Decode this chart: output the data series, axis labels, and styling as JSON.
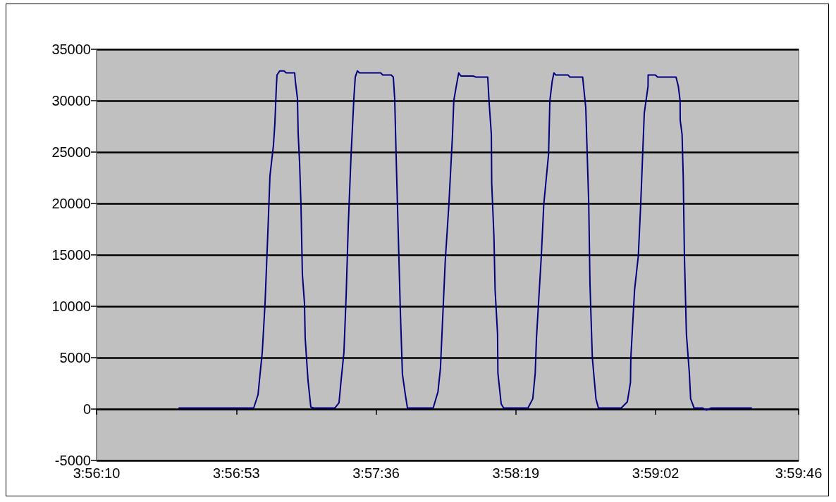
{
  "chart_data": {
    "type": "line",
    "xlim": [
      3.936111,
      3.996111
    ],
    "xticks": [
      {
        "value": 3.936111,
        "label": "3:56:10"
      },
      {
        "value": 3.948056,
        "label": "3:56:53"
      },
      {
        "value": 3.96,
        "label": "3:57:36"
      },
      {
        "value": 3.971944,
        "label": "3:58:19"
      },
      {
        "value": 3.983889,
        "label": "3:59:02"
      },
      {
        "value": 3.996111,
        "label": "3:59:46"
      }
    ],
    "ylim": [
      -5000,
      35000
    ],
    "yticks": [
      -5000,
      0,
      5000,
      10000,
      15000,
      20000,
      25000,
      30000,
      35000
    ],
    "grid": "y",
    "marker": "none",
    "line_style": "solid",
    "series": [
      {
        "color": "#000080",
        "x": [
          3.94316,
          3.94954,
          3.94991,
          3.95003,
          3.95027,
          3.95051,
          3.95075,
          3.95093,
          3.95123,
          3.95135,
          3.95141,
          3.95147,
          3.95153,
          3.95177,
          3.95213,
          3.95232,
          3.95304,
          3.9531,
          3.95328,
          3.95334,
          3.95346,
          3.95358,
          3.9537,
          3.95388,
          3.95394,
          3.95418,
          3.95442,
          3.95466,
          3.95647,
          3.95683,
          3.95701,
          3.95725,
          3.95744,
          3.95762,
          3.95786,
          3.9581,
          3.95822,
          3.9584,
          3.95858,
          3.96039,
          3.96057,
          3.96129,
          3.96147,
          3.96159,
          3.96171,
          3.96189,
          3.96207,
          3.96225,
          3.9625,
          3.96268,
          3.96488,
          3.96529,
          3.9655,
          3.96591,
          3.96622,
          3.96653,
          3.96664,
          3.96685,
          3.96706,
          3.96725,
          3.9683,
          3.96851,
          3.96954,
          3.96965,
          3.96985,
          3.96988,
          3.97007,
          3.97017,
          3.97038,
          3.97041,
          3.97069,
          3.9709,
          3.97298,
          3.97339,
          3.9736,
          3.9737,
          3.97412,
          3.97433,
          3.97474,
          3.97485,
          3.97505,
          3.9752,
          3.97536,
          3.97641,
          3.97655,
          3.97765,
          3.97792,
          3.97817,
          3.97828,
          3.97848,
          3.97879,
          3.979,
          3.98095,
          3.98147,
          3.98174,
          3.98177,
          3.98209,
          3.98241,
          3.98262,
          3.98292,
          3.98324,
          3.98325,
          3.98386,
          3.98406,
          3.98563,
          3.98583,
          3.98598,
          3.98599,
          3.98615,
          3.98625,
          3.98635,
          3.98652,
          3.98677,
          3.98688,
          3.98718,
          3.98792,
          3.98822,
          3.98864,
          3.99207
        ],
        "values": [
          100,
          100,
          1400,
          2800,
          5500,
          10300,
          17200,
          22700,
          25700,
          27800,
          29500,
          31200,
          32500,
          32900,
          32900,
          32700,
          32700,
          31900,
          30200,
          26800,
          24000,
          19900,
          13100,
          10300,
          6900,
          2800,
          200,
          100,
          100,
          600,
          2800,
          5500,
          11000,
          17800,
          24700,
          30200,
          32300,
          32900,
          32700,
          32700,
          32500,
          32500,
          32300,
          30200,
          24700,
          17200,
          9600,
          3400,
          1400,
          100,
          100,
          1700,
          4000,
          14400,
          19900,
          26700,
          30000,
          31400,
          32700,
          32400,
          32400,
          32300,
          32300,
          30000,
          26700,
          22000,
          16800,
          11600,
          7300,
          3500,
          500,
          100,
          100,
          1000,
          3500,
          6800,
          14900,
          19900,
          24800,
          30000,
          31900,
          32700,
          32500,
          32500,
          32300,
          32300,
          29300,
          20100,
          12100,
          5000,
          1000,
          100,
          100,
          700,
          2600,
          5000,
          11600,
          14900,
          20100,
          28800,
          31400,
          32500,
          32500,
          32300,
          32300,
          31400,
          30000,
          28100,
          26700,
          22500,
          14900,
          7300,
          3500,
          1000,
          100,
          100,
          -100,
          100,
          100
        ]
      }
    ]
  }
}
